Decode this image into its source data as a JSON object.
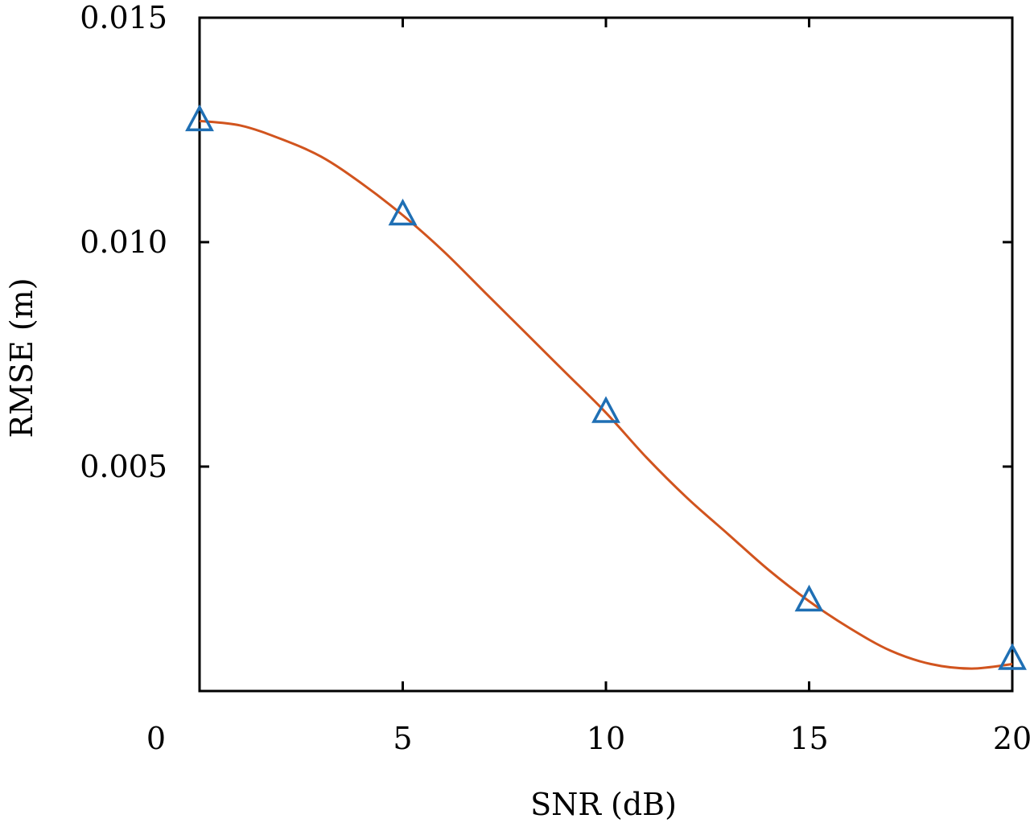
{
  "chart_data": {
    "type": "line",
    "title": "",
    "xlabel": "SNR (dB)",
    "ylabel": "RMSE (m)",
    "xlim": [
      0,
      20
    ],
    "ylim": [
      0,
      0.015
    ],
    "x_ticks": [
      0,
      5,
      10,
      15,
      20
    ],
    "x_tick_labels": [
      "0",
      "5",
      "10",
      "15",
      "20"
    ],
    "y_ticks": [
      0.005,
      0.01,
      0.015
    ],
    "y_tick_labels": [
      "0.005",
      "0.010",
      "0.015"
    ],
    "grid": false,
    "series": [
      {
        "kind": "markers",
        "marker": "triangle-open",
        "color": "#1f6fb4",
        "x": [
          0,
          5,
          10,
          15,
          20
        ],
        "y": [
          0.0127,
          0.0106,
          0.0062,
          0.002,
          0.0007
        ]
      },
      {
        "kind": "smooth-fit-line",
        "color": "#d1541e",
        "x": [
          0,
          1,
          2,
          3,
          4,
          5,
          6,
          7,
          8,
          9,
          10,
          11,
          12,
          13,
          14,
          15,
          16,
          17,
          18,
          19,
          20
        ],
        "y": [
          0.0127,
          0.0126,
          0.0123,
          0.0119,
          0.0113,
          0.0106,
          0.0098,
          0.0089,
          0.008,
          0.0071,
          0.0062,
          0.0052,
          0.0043,
          0.0035,
          0.0027,
          0.002,
          0.0014,
          0.0009,
          0.0006,
          0.0005,
          0.0006
        ]
      }
    ]
  }
}
